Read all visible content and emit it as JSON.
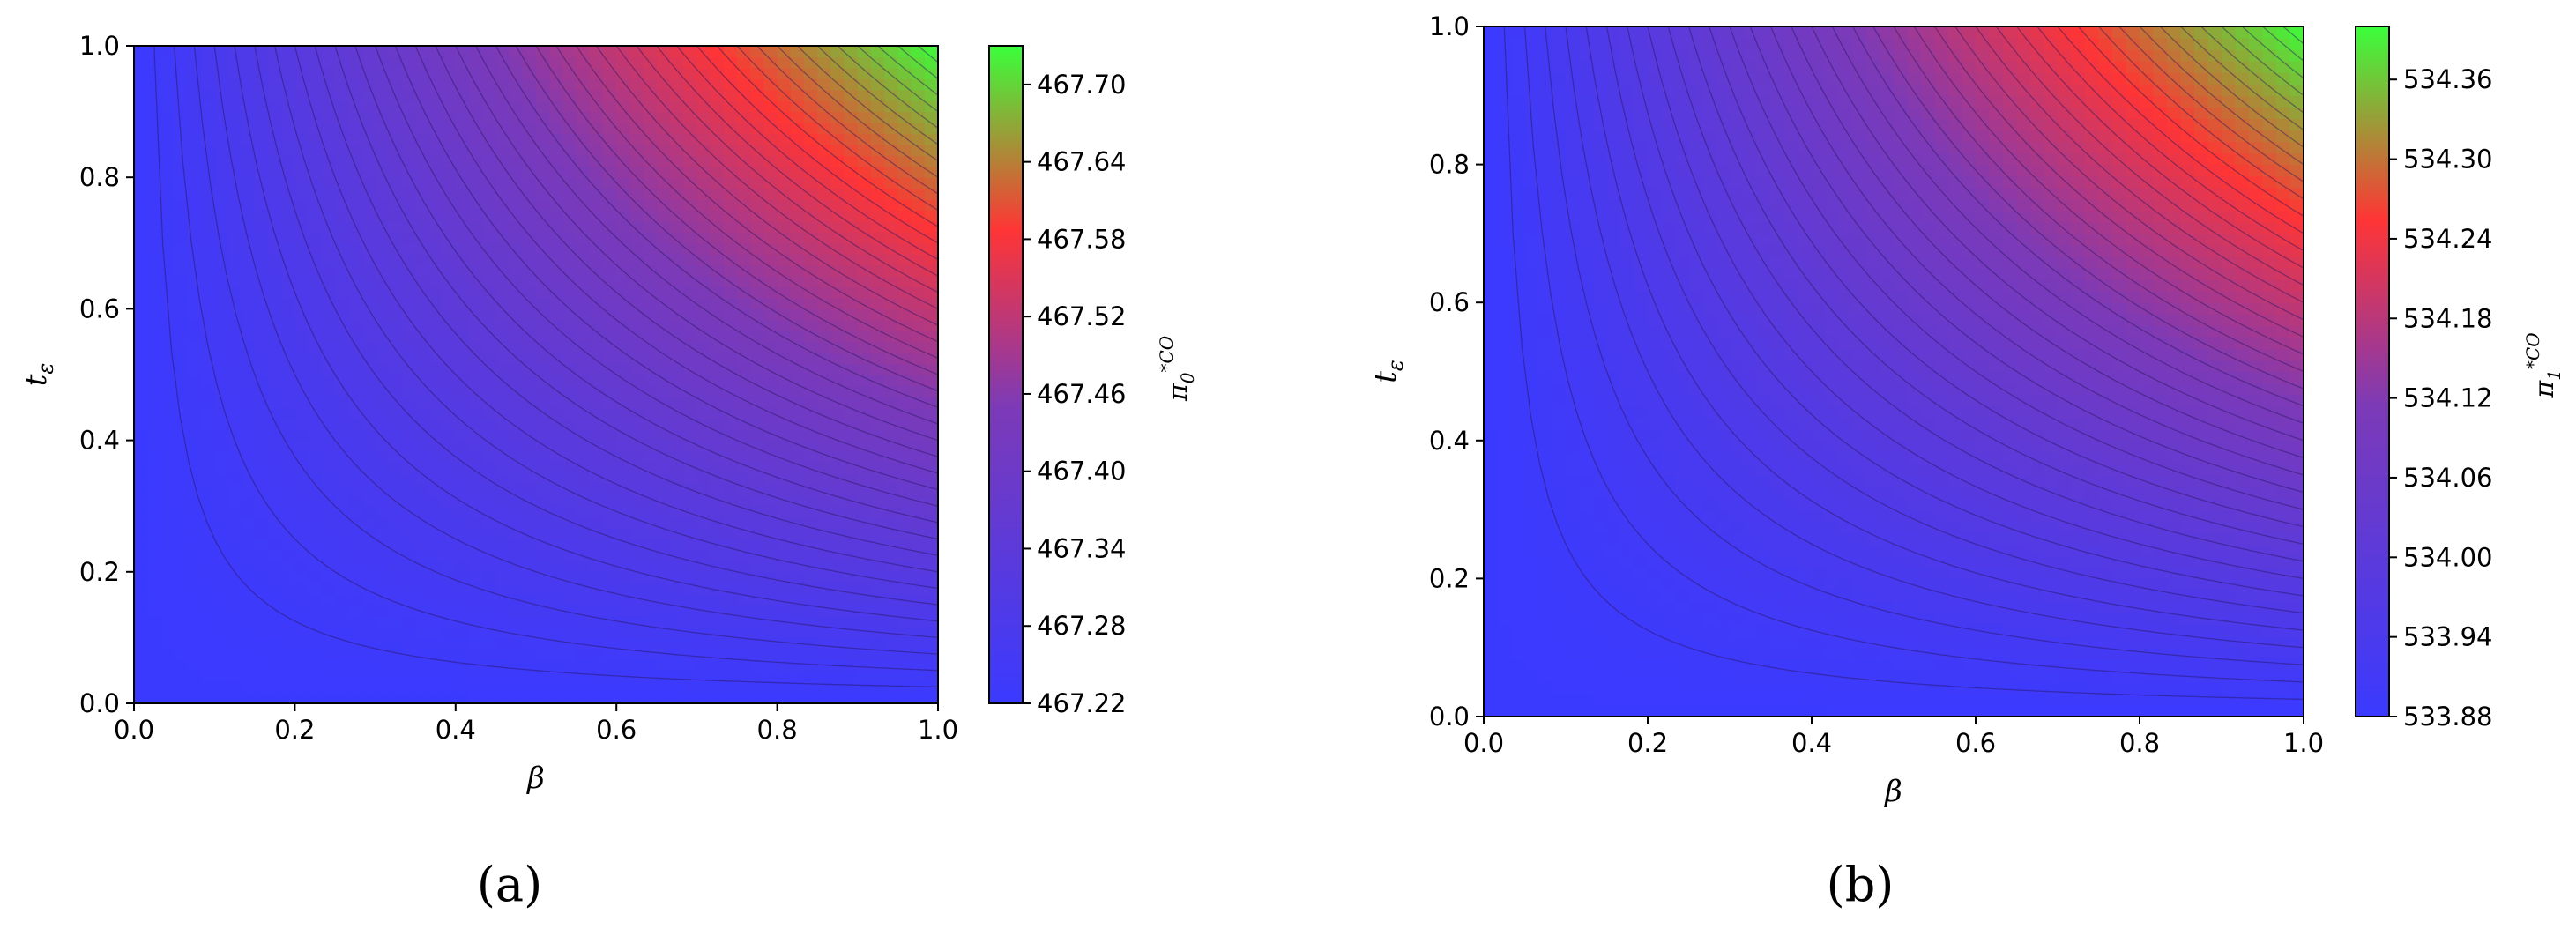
{
  "chart_data": [
    {
      "type": "heatmap",
      "panel_label": "(a)",
      "xlabel": "β",
      "ylabel_base": "t",
      "ylabel_sub": "ε",
      "colorbar_label_base": "π",
      "colorbar_label_sub": "0",
      "colorbar_label_sup": "*CO",
      "xlim": [
        0.0,
        1.0
      ],
      "ylim": [
        0.0,
        1.0
      ],
      "xticks": [
        "0.0",
        "0.2",
        "0.4",
        "0.6",
        "0.8",
        "1.0"
      ],
      "yticks": [
        "0.0",
        "0.2",
        "0.4",
        "0.6",
        "0.8",
        "1.0"
      ],
      "colorbar_range": [
        467.22,
        467.73
      ],
      "colorbar_ticks": [
        "467.22",
        "467.28",
        "467.34",
        "467.40",
        "467.46",
        "467.52",
        "467.58",
        "467.64",
        "467.70"
      ],
      "colormap": [
        "#3a3aff",
        "#7c3ab7",
        "#ff3535",
        "#3aff3a"
      ],
      "contour_levels": 40,
      "surface": "value rises with β·t_ε; minimum 467.22 along β=0 or t_ε=0, maximum ≈467.73 at β=1, t_ε=1"
    },
    {
      "type": "heatmap",
      "panel_label": "(b)",
      "xlabel": "β",
      "ylabel_base": "t",
      "ylabel_sub": "ε",
      "colorbar_label_base": "π",
      "colorbar_label_sub": "1",
      "colorbar_label_sup": "*CO",
      "xlim": [
        0.0,
        1.0
      ],
      "ylim": [
        0.0,
        1.0
      ],
      "xticks": [
        "0.0",
        "0.2",
        "0.4",
        "0.6",
        "0.8",
        "1.0"
      ],
      "yticks": [
        "0.0",
        "0.2",
        "0.4",
        "0.6",
        "0.8",
        "1.0"
      ],
      "colorbar_range": [
        533.88,
        534.4
      ],
      "colorbar_ticks": [
        "533.88",
        "533.94",
        "534.00",
        "534.06",
        "534.12",
        "534.18",
        "534.24",
        "534.30",
        "534.36"
      ],
      "colormap": [
        "#3a3aff",
        "#7c3ab7",
        "#ff3535",
        "#3aff3a"
      ],
      "contour_levels": 40,
      "surface": "value rises with β·t_ε; minimum 533.88 along β=0 or t_ε=0, maximum ≈534.40 at β=1, t_ε=1"
    }
  ]
}
